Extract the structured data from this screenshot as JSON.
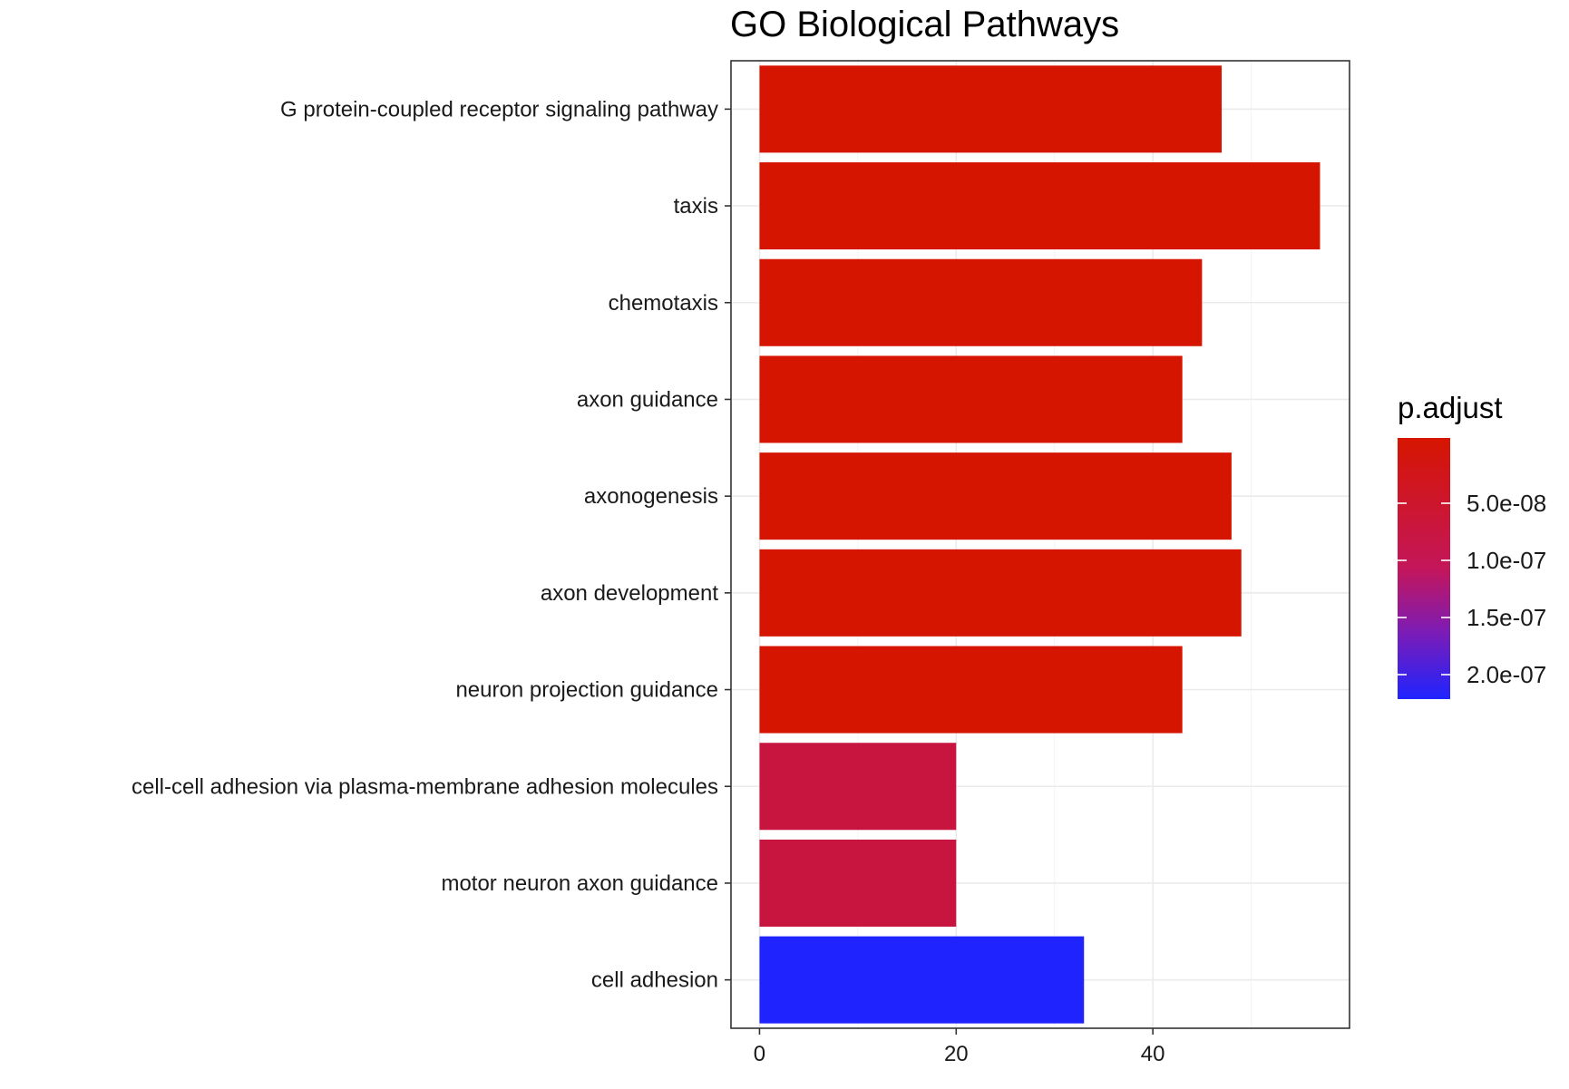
{
  "chart_data": {
    "type": "bar",
    "orientation": "horizontal",
    "title": "GO Biological Pathways",
    "xlabel": "",
    "ylabel": "",
    "xlim": [
      -2.9,
      60
    ],
    "x_ticks": [
      0,
      20,
      40
    ],
    "grid": true,
    "legend_position": "right",
    "categories": [
      "G protein-coupled receptor signaling pathway",
      "taxis",
      "chemotaxis",
      "axon guidance",
      "axonogenesis",
      "axon development",
      "neuron projection guidance",
      "cell-cell adhesion via plasma-membrane adhesion molecules",
      "motor neuron axon guidance",
      "cell adhesion"
    ],
    "values": [
      47,
      57,
      45,
      43,
      48,
      49,
      43,
      20,
      20,
      33
    ],
    "bar_colors": [
      "#d61500",
      "#d61500",
      "#d61500",
      "#d61500",
      "#d61500",
      "#d61500",
      "#d61500",
      "#c71540",
      "#c71540",
      "#1f24ff"
    ],
    "colorbar": {
      "title": "p.adjust",
      "ticks": [
        "5.0e-08",
        "1.0e-07",
        "1.5e-07",
        "2.0e-07"
      ],
      "color_low": "#d61500",
      "color_high": "#1f24ff"
    }
  }
}
